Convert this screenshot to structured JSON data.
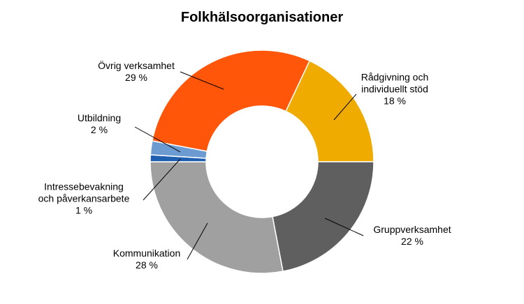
{
  "chart_data": {
    "type": "donut",
    "title": "Folkhälsoorganisationer",
    "categories": [
      "Rådgivning och individuellt stöd",
      "Gruppverksamhet",
      "Kommunikation",
      "Intressebevakning och påverkansarbete",
      "Utbildning",
      "Övrig verksamhet"
    ],
    "values": [
      18,
      22,
      28,
      1,
      2,
      29
    ],
    "value_labels": [
      "18 %",
      "22 %",
      "28 %",
      "1 %",
      "2 %",
      "29 %"
    ],
    "colors": [
      "#f0ab00",
      "#5f5f5f",
      "#a0a0a0",
      "#1f5fb0",
      "#6c9bd2",
      "#ff560a"
    ]
  }
}
